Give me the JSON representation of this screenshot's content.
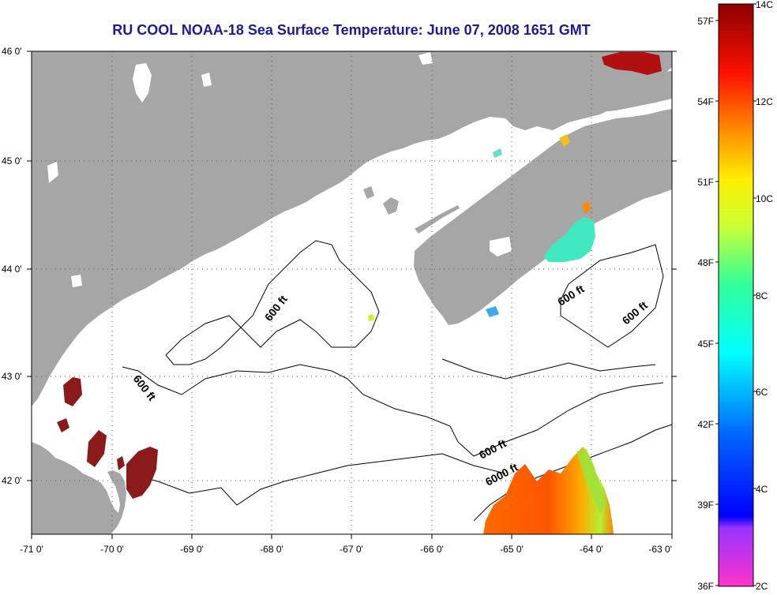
{
  "title": "RU COOL  NOAA-18  Sea Surface Temperature:  June 07, 2008 1651 GMT",
  "latitude_labels": [
    "46 0'",
    "45 0'",
    "44 0'",
    "43 0'",
    "42 0'"
  ],
  "longitude_labels": [
    "-71 0'",
    "-70 0'",
    "-69 0'",
    "-68 0'",
    "-67 0'",
    "-66 0'",
    "-65 0'",
    "-64 0'",
    "-63 0'"
  ],
  "colorbar": {
    "celsius_labels": [
      "14C",
      "12C",
      "10C",
      "8C",
      "6C",
      "4C",
      "2C"
    ],
    "fahrenheit_labels": [
      "57F",
      "54F",
      "51F",
      "48F",
      "45F",
      "42F",
      "39F",
      "36F"
    ]
  },
  "contour_labels": [
    "600 ft",
    "600 ft",
    "600 ft",
    "600 ft",
    "600 ft",
    "6000 ft"
  ],
  "colors": {
    "title": "#1a1a9a",
    "land": "#a6a6a6",
    "water": "#ffffff",
    "grid": "#555555"
  }
}
